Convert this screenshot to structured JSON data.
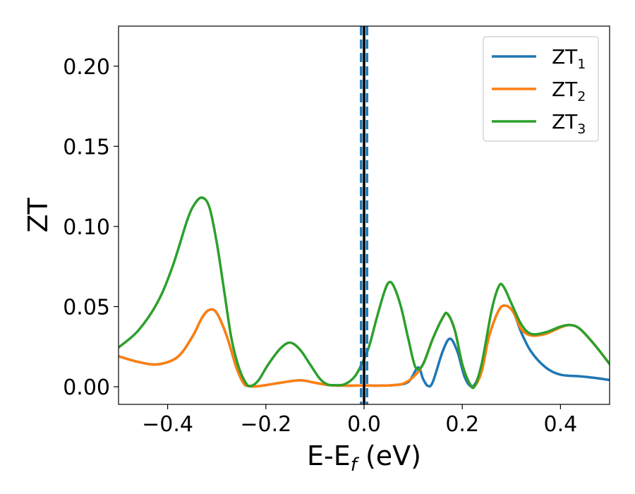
{
  "chart_data": {
    "type": "line",
    "title": "",
    "xlabel": "E-E",
    "xlabel_sub": "f",
    "xlabel_suffix": " (eV)",
    "ylabel": "ZT",
    "xlim": [
      -0.5,
      0.5
    ],
    "ylim": [
      -0.011,
      0.225
    ],
    "x_ticks": [
      -0.4,
      -0.2,
      0.0,
      0.2,
      0.4
    ],
    "x_tick_labels": [
      "−0.4",
      "−0.2",
      "0.0",
      "0.2",
      "0.4"
    ],
    "y_ticks": [
      0.0,
      0.05,
      0.1,
      0.15,
      0.2
    ],
    "y_tick_labels": [
      "0.00",
      "0.05",
      "0.10",
      "0.15",
      "0.20"
    ],
    "grid": false,
    "legend_position": "top-right",
    "vertical_lines": [
      {
        "x": 0.0,
        "color": "#000000",
        "style": "solid"
      },
      {
        "x": -0.006,
        "color": "#1f77b4",
        "style": "dashed"
      },
      {
        "x": 0.006,
        "color": "#1f77b4",
        "style": "dashed"
      }
    ],
    "series": [
      {
        "name": "ZT",
        "name_sub": "1",
        "color": "#1f77b4",
        "points": [
          [
            -0.5,
            0.019
          ],
          [
            -0.46,
            0.0155
          ],
          [
            -0.42,
            0.014
          ],
          [
            -0.38,
            0.0185
          ],
          [
            -0.35,
            0.031
          ],
          [
            -0.33,
            0.043
          ],
          [
            -0.315,
            0.048
          ],
          [
            -0.3,
            0.046
          ],
          [
            -0.28,
            0.032
          ],
          [
            -0.26,
            0.012
          ],
          [
            -0.245,
            0.002
          ],
          [
            -0.235,
            0.0005
          ],
          [
            -0.22,
            0.0002
          ],
          [
            -0.2,
            0.001
          ],
          [
            -0.17,
            0.0025
          ],
          [
            -0.13,
            0.004
          ],
          [
            -0.1,
            0.0025
          ],
          [
            -0.07,
            0.001
          ],
          [
            -0.04,
            0.0007
          ],
          [
            0.0,
            0.0008
          ],
          [
            0.03,
            0.0007
          ],
          [
            0.06,
            0.001
          ],
          [
            0.09,
            0.003
          ],
          [
            0.11,
            0.012
          ],
          [
            0.12,
            0.005
          ],
          [
            0.13,
            0.0005
          ],
          [
            0.14,
            0.003
          ],
          [
            0.16,
            0.022
          ],
          [
            0.175,
            0.03
          ],
          [
            0.19,
            0.022
          ],
          [
            0.205,
            0.006
          ],
          [
            0.22,
            0.0002
          ],
          [
            0.235,
            0.008
          ],
          [
            0.255,
            0.032
          ],
          [
            0.275,
            0.048
          ],
          [
            0.29,
            0.0505
          ],
          [
            0.305,
            0.046
          ],
          [
            0.32,
            0.034
          ],
          [
            0.34,
            0.022
          ],
          [
            0.37,
            0.012
          ],
          [
            0.4,
            0.0075
          ],
          [
            0.44,
            0.0065
          ],
          [
            0.47,
            0.0055
          ],
          [
            0.5,
            0.0042
          ]
        ]
      },
      {
        "name": "ZT",
        "name_sub": "2",
        "color": "#ff7f0e",
        "points": [
          [
            -0.5,
            0.019
          ],
          [
            -0.46,
            0.0155
          ],
          [
            -0.42,
            0.014
          ],
          [
            -0.38,
            0.0185
          ],
          [
            -0.35,
            0.031
          ],
          [
            -0.33,
            0.043
          ],
          [
            -0.315,
            0.048
          ],
          [
            -0.3,
            0.046
          ],
          [
            -0.28,
            0.032
          ],
          [
            -0.26,
            0.012
          ],
          [
            -0.245,
            0.002
          ],
          [
            -0.235,
            0.0005
          ],
          [
            -0.22,
            0.0002
          ],
          [
            -0.2,
            0.001
          ],
          [
            -0.17,
            0.0025
          ],
          [
            -0.13,
            0.004
          ],
          [
            -0.1,
            0.0025
          ],
          [
            -0.07,
            0.001
          ],
          [
            -0.04,
            0.0007
          ],
          [
            0.0,
            0.0008
          ],
          [
            0.03,
            0.0007
          ],
          [
            0.06,
            0.001
          ],
          [
            0.08,
            0.002
          ],
          [
            0.1,
            0.006
          ],
          [
            0.12,
            0.014
          ],
          [
            0.14,
            0.03
          ],
          [
            0.16,
            0.043
          ],
          [
            0.17,
            0.0455
          ],
          [
            0.185,
            0.035
          ],
          [
            0.2,
            0.014
          ],
          [
            0.215,
            0.002
          ],
          [
            0.225,
            0.0003
          ],
          [
            0.24,
            0.01
          ],
          [
            0.255,
            0.032
          ],
          [
            0.275,
            0.048
          ],
          [
            0.29,
            0.0505
          ],
          [
            0.305,
            0.046
          ],
          [
            0.32,
            0.036
          ],
          [
            0.34,
            0.032
          ],
          [
            0.37,
            0.033
          ],
          [
            0.4,
            0.037
          ],
          [
            0.42,
            0.0385
          ],
          [
            0.44,
            0.036
          ],
          [
            0.47,
            0.026
          ],
          [
            0.5,
            0.0142
          ]
        ]
      },
      {
        "name": "ZT",
        "name_sub": "3",
        "color": "#2ca02c",
        "points": [
          [
            -0.5,
            0.0245
          ],
          [
            -0.46,
            0.035
          ],
          [
            -0.42,
            0.053
          ],
          [
            -0.39,
            0.075
          ],
          [
            -0.36,
            0.104
          ],
          [
            -0.345,
            0.114
          ],
          [
            -0.33,
            0.118
          ],
          [
            -0.315,
            0.112
          ],
          [
            -0.3,
            0.09
          ],
          [
            -0.285,
            0.06
          ],
          [
            -0.27,
            0.03
          ],
          [
            -0.255,
            0.012
          ],
          [
            -0.24,
            0.002
          ],
          [
            -0.23,
            0.0005
          ],
          [
            -0.215,
            0.004
          ],
          [
            -0.195,
            0.014
          ],
          [
            -0.17,
            0.024
          ],
          [
            -0.15,
            0.0275
          ],
          [
            -0.13,
            0.023
          ],
          [
            -0.11,
            0.014
          ],
          [
            -0.09,
            0.005
          ],
          [
            -0.075,
            0.0015
          ],
          [
            -0.06,
            0.001
          ],
          [
            -0.04,
            0.0015
          ],
          [
            -0.02,
            0.006
          ],
          [
            -0.005,
            0.014
          ],
          [
            0.01,
            0.025
          ],
          [
            0.025,
            0.042
          ],
          [
            0.04,
            0.058
          ],
          [
            0.05,
            0.065
          ],
          [
            0.06,
            0.063
          ],
          [
            0.075,
            0.05
          ],
          [
            0.09,
            0.03
          ],
          [
            0.105,
            0.012
          ],
          [
            0.12,
            0.014
          ],
          [
            0.14,
            0.03
          ],
          [
            0.16,
            0.043
          ],
          [
            0.17,
            0.0455
          ],
          [
            0.185,
            0.035
          ],
          [
            0.2,
            0.014
          ],
          [
            0.215,
            0.002
          ],
          [
            0.225,
            0.0003
          ],
          [
            0.24,
            0.015
          ],
          [
            0.26,
            0.048
          ],
          [
            0.275,
            0.063
          ],
          [
            0.285,
            0.062
          ],
          [
            0.3,
            0.052
          ],
          [
            0.32,
            0.039
          ],
          [
            0.34,
            0.033
          ],
          [
            0.37,
            0.034
          ],
          [
            0.4,
            0.0375
          ],
          [
            0.42,
            0.0385
          ],
          [
            0.44,
            0.036
          ],
          [
            0.47,
            0.026
          ],
          [
            0.5,
            0.0142
          ]
        ]
      }
    ]
  }
}
